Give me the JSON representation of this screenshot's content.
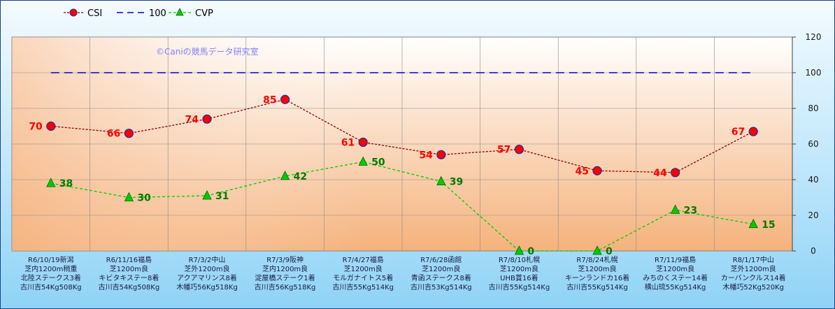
{
  "chart_data": {
    "type": "line",
    "watermark": "©Caniの競馬データ研究室",
    "categories": [
      [
        "R6/10/19新潟",
        "芝内1200m稍重",
        "北陸ステークス3着",
        "古川吉54Kg508Kg"
      ],
      [
        "R6/11/16福島",
        "芝1200m良",
        "キビタキステー8着",
        "古川吉54Kg508Kg"
      ],
      [
        "R7/3/2中山",
        "芝外1200m良",
        "アクアマリンス8着",
        "木幡巧56Kg518Kg"
      ],
      [
        "R7/3/9阪神",
        "芝内1200m良",
        "淀屋橋ステーク1着",
        "古川吉56Kg518Kg"
      ],
      [
        "R7/4/27福島",
        "芝1200m良",
        "モルガナイトス5着",
        "古川吉55Kg514Kg"
      ],
      [
        "R7/6/28函館",
        "芝1200m良",
        "青函ステークス8着",
        "古川吉53Kg514Kg"
      ],
      [
        "R7/8/10札幌",
        "芝1200m良",
        "UHB賞16着",
        "古川吉55Kg514Kg"
      ],
      [
        "R7/8/24札幌",
        "芝1200m良",
        "キーンランドカ16着",
        "古川吉55Kg514Kg"
      ],
      [
        "R7/11/9福島",
        "芝1200m良",
        "みちのくステー14着",
        "横山琉55Kg514Kg"
      ],
      [
        "R8/1/17中山",
        "芝外1200m良",
        "カーバンクルス14着",
        "木幡巧52Kg520Kg"
      ]
    ],
    "series": [
      {
        "name": "CSI",
        "values": [
          70,
          66,
          74,
          85,
          61,
          54,
          57,
          45,
          44,
          67
        ],
        "color": "#ff0000",
        "line_color": "#8b0000",
        "marker": "circle"
      },
      {
        "name": "100",
        "values": [
          100,
          100,
          100,
          100,
          100,
          100,
          100,
          100,
          100,
          100
        ],
        "color": "#0000cc",
        "marker": "none",
        "dash": "long"
      },
      {
        "name": "CVP",
        "values": [
          38,
          30,
          31,
          42,
          50,
          39,
          0,
          0,
          23,
          15
        ],
        "color": "#00cc00",
        "marker": "triangle"
      }
    ],
    "ylim": [
      0,
      120
    ],
    "yticks": [
      0,
      20,
      40,
      60,
      80,
      100,
      120
    ],
    "y_axis_side": "right",
    "grid": true,
    "legend_position": "top-left"
  }
}
